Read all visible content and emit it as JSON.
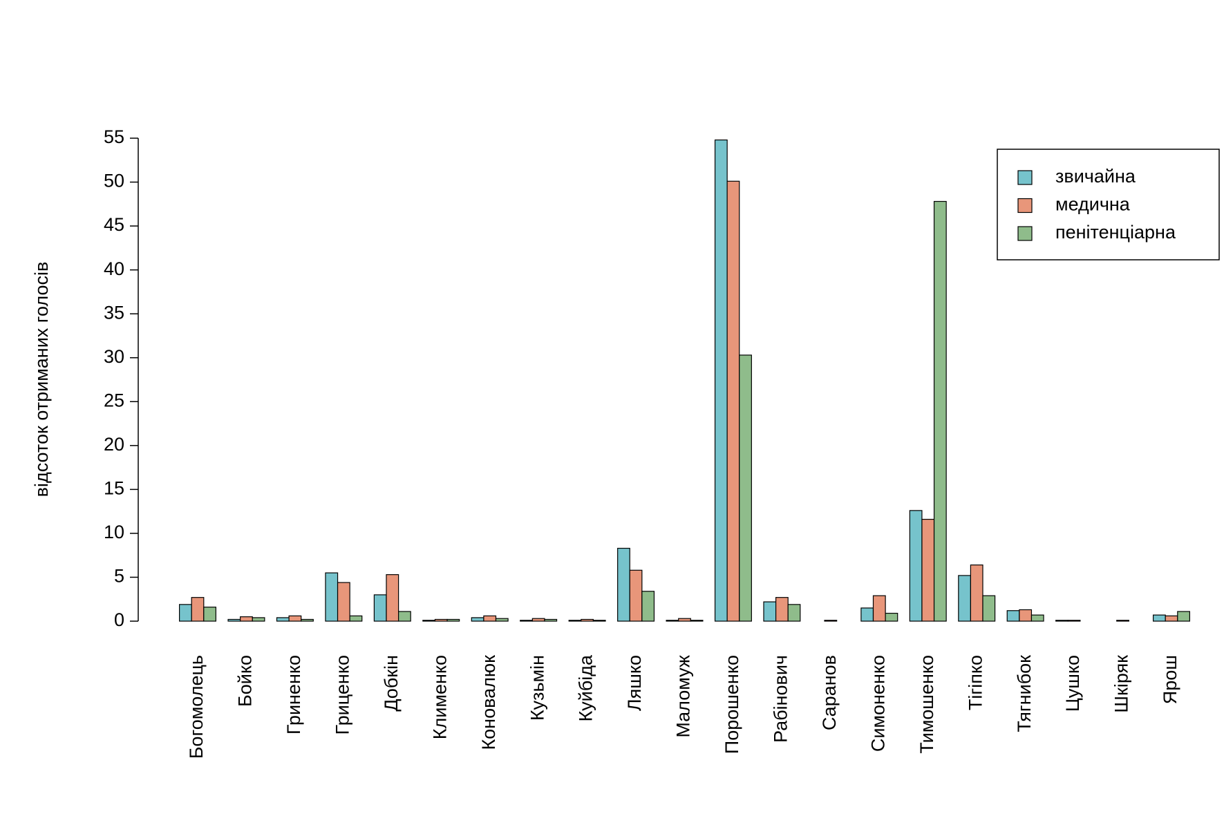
{
  "chart_data": {
    "type": "bar",
    "y_label": "відсоток отриманих голосів",
    "categories": [
      "Богомолець",
      "Бойко",
      "Гриненко",
      "Гриценко",
      "Добкін",
      "Клименко",
      "Коновалюк",
      "Кузьмін",
      "Куйбіда",
      "Ляшко",
      "Маломуж",
      "Порошенко",
      "Рабінович",
      "Саранов",
      "Симоненко",
      "Тимошенко",
      "Тігіпко",
      "Тягнибок",
      "Цушко",
      "Шкіряк",
      "Ярош"
    ],
    "series": [
      {
        "name": "звичайна",
        "color": "#76c3cc",
        "values": [
          1.9,
          0.2,
          0.4,
          5.5,
          3.0,
          0.1,
          0.4,
          0.1,
          0.1,
          8.3,
          0.1,
          54.8,
          2.2,
          0.0,
          1.5,
          12.6,
          5.2,
          1.2,
          0.1,
          0.0,
          0.7
        ]
      },
      {
        "name": "медична",
        "color": "#e8967a",
        "values": [
          2.7,
          0.5,
          0.6,
          4.4,
          5.3,
          0.2,
          0.6,
          0.3,
          0.2,
          5.8,
          0.3,
          50.1,
          2.7,
          0.1,
          2.9,
          11.6,
          6.4,
          1.3,
          0.1,
          0.1,
          0.6
        ]
      },
      {
        "name": "пенітенціарна",
        "color": "#8fbc8b",
        "values": [
          1.6,
          0.4,
          0.2,
          0.6,
          1.1,
          0.2,
          0.3,
          0.2,
          0.1,
          3.4,
          0.1,
          30.3,
          1.9,
          0.0,
          0.9,
          47.8,
          2.9,
          0.7,
          0.0,
          0.0,
          1.1
        ]
      }
    ],
    "ylim": [
      0,
      55
    ],
    "yticks": [
      0,
      5,
      10,
      15,
      20,
      25,
      30,
      35,
      40,
      45,
      50,
      55
    ],
    "legend": "top-right"
  }
}
